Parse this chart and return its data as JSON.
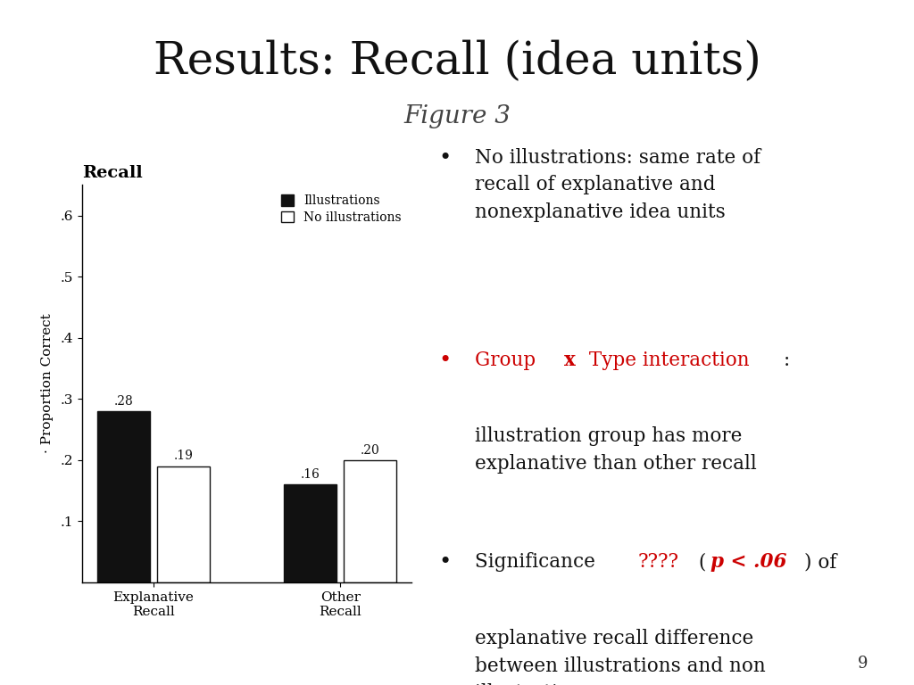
{
  "title": "Results: Recall (idea units)",
  "subtitle": "Figure 3",
  "background_color": "#ffffff",
  "chart_title": "Recall",
  "chart_ylabel": "· Proportion Correct",
  "categories": [
    "Explanative\nRecall",
    "Other\nRecall"
  ],
  "illustrations_values": [
    0.28,
    0.16
  ],
  "no_illustrations_values": [
    0.19,
    0.2
  ],
  "bar_labels_illus": [
    ".28",
    ".16"
  ],
  "bar_labels_noillus": [
    ".19",
    ".20"
  ],
  "ylim": [
    0,
    0.65
  ],
  "yticks": [
    0.1,
    0.2,
    0.3,
    0.4,
    0.5,
    0.6
  ],
  "ytick_labels": [
    ".1",
    ".2",
    ".3",
    ".4",
    ".5",
    ".6"
  ],
  "page_number": "9",
  "bar_color_illus": "#111111",
  "bar_color_noillus": "#ffffff",
  "red_color": "#cc0000",
  "black_color": "#111111"
}
